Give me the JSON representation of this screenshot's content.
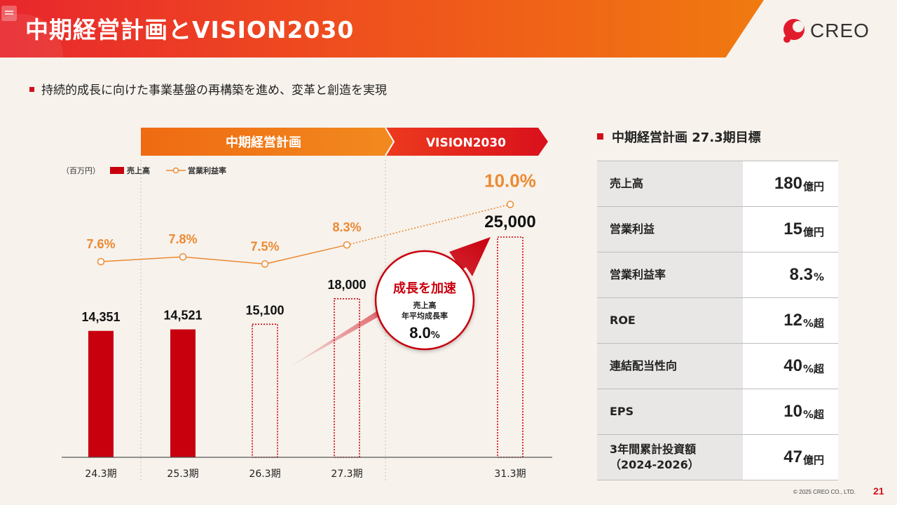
{
  "header": {
    "title": "中期経営計画とVISION2030"
  },
  "logo": {
    "text": "CREO"
  },
  "subtitle": "持続的成長に向けた事業基盤の再構築を進め、変革と創造を実現",
  "chart_data": {
    "type": "bar",
    "unit_label": "（百万円）",
    "categories": [
      "24.3期",
      "25.3期",
      "26.3期",
      "27.3期",
      "31.3期"
    ],
    "series": [
      {
        "name": "売上高",
        "type": "bar",
        "values": [
          14351,
          14521,
          15100,
          18000,
          25000
        ],
        "value_labels": [
          "14,351",
          "14,521",
          "15,100",
          "18,000",
          "25,000"
        ],
        "styles": [
          "actual",
          "actual",
          "plan",
          "plan",
          "plan"
        ]
      },
      {
        "name": "営業利益率",
        "type": "line",
        "values": [
          7.6,
          7.8,
          7.5,
          8.3,
          10.0
        ],
        "value_labels": [
          "7.6%",
          "7.8%",
          "7.5%",
          "8.3%",
          "10.0%"
        ]
      }
    ],
    "phases": [
      {
        "label": "中期経営計画"
      },
      {
        "label": "VISION2030"
      }
    ],
    "callout": {
      "title": "成長を加速",
      "line1": "売上高",
      "line2": "年平均成長率",
      "value": "8.0",
      "unit": "%"
    },
    "colors": {
      "bar": "#c8000e",
      "line": "#eb8a32",
      "plan": "#c8000e"
    }
  },
  "kpi": {
    "title": "中期経営計画 27.3期目標",
    "rows": [
      {
        "label": "売上高",
        "value": "180",
        "unit": "億円"
      },
      {
        "label": "営業利益",
        "value": "15",
        "unit": "億円"
      },
      {
        "label": "営業利益率",
        "value": "8.3",
        "unit": "%"
      },
      {
        "label": "ROE",
        "value": "12",
        "unit": "%超"
      },
      {
        "label": "連結配当性向",
        "value": "40",
        "unit": "%超"
      },
      {
        "label": "EPS",
        "value": "10",
        "unit": "%超"
      },
      {
        "label": "3年間累計投資額\n（2024-2026）",
        "value": "47",
        "unit": "億円"
      }
    ]
  },
  "footer": {
    "copyright": "© 2025 CREO CO., LTD.",
    "page": "21"
  }
}
